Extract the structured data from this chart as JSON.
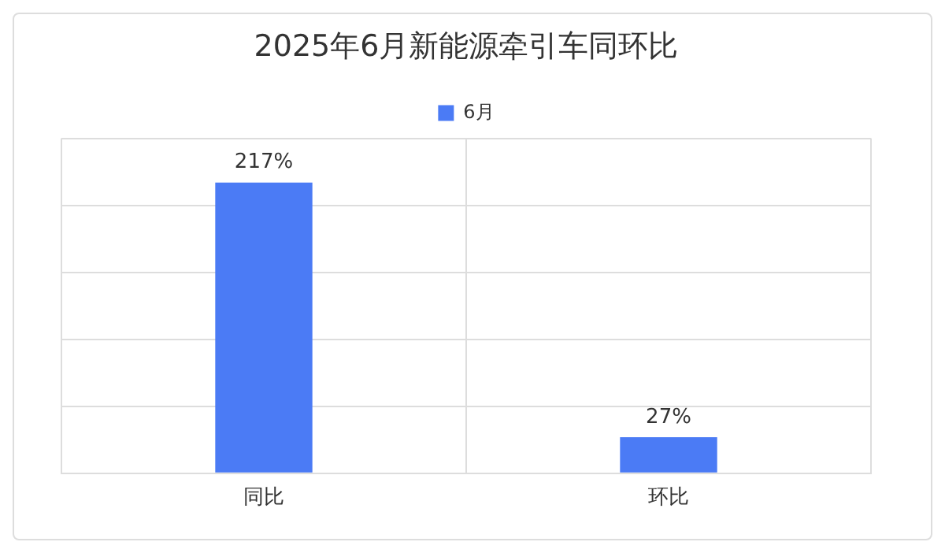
{
  "chart_data": {
    "type": "bar",
    "title": "2025年6月新能源牵引车同环比",
    "categories": [
      "同比",
      "环比"
    ],
    "series": [
      {
        "name": "6月",
        "color": "#4b7bf5",
        "values": [
          217,
          27
        ],
        "value_labels": [
          "217%",
          "27%"
        ]
      }
    ],
    "ylim": [
      0,
      250
    ],
    "yticks": [
      {
        "value": 0,
        "label": null
      },
      {
        "value": 50,
        "label": null
      },
      {
        "value": 100,
        "label": null
      },
      {
        "value": 150,
        "label": null
      },
      {
        "value": 200,
        "label": null
      },
      {
        "value": 250,
        "label": null
      }
    ],
    "tick_labels": "x",
    "grid": true,
    "legend": "top"
  }
}
